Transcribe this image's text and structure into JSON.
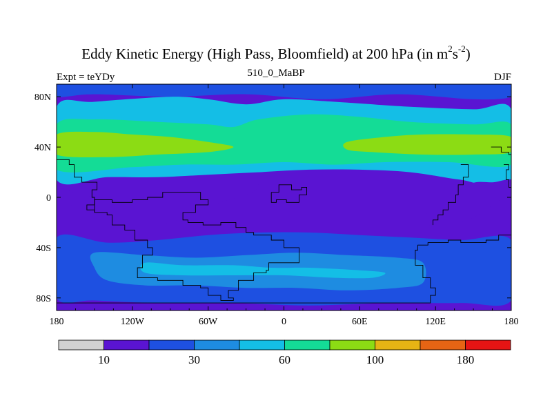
{
  "title": {
    "main": "Eddy Kinetic Energy (High Pass, Bloomfield) at 200 hPa (in m",
    "sup1": "2",
    "mid": "s",
    "sup2": "-2",
    "end": ")"
  },
  "subtitle": "510_0_MaBP",
  "left_label": "Expt = teYDy",
  "right_label": "DJF",
  "colors": {
    "land_outline": "#000000",
    "frame": "#000000"
  },
  "chart_data": {
    "type": "heatmap",
    "title": "Eddy Kinetic Energy (High Pass, Bloomfield) at 200 hPa (in m^2s^-2)",
    "x_axis": {
      "range": [
        -180,
        180
      ],
      "ticks": [
        -180,
        -120,
        -60,
        0,
        60,
        120,
        180
      ],
      "tick_labels": [
        "180",
        "120W",
        "60W",
        "0",
        "60E",
        "120E",
        "180"
      ]
    },
    "y_axis": {
      "range": [
        -90,
        90
      ],
      "ticks": [
        80,
        40,
        0,
        -40,
        -80
      ],
      "tick_labels": [
        "80N",
        "40N",
        "0",
        "40S",
        "80S"
      ]
    },
    "colorbar": {
      "colors": [
        "#d2d2d2",
        "#5a14d2",
        "#1e50e1",
        "#1e8ce1",
        "#14bee6",
        "#14dc96",
        "#8cdc14",
        "#e6b414",
        "#e66414",
        "#e61414"
      ],
      "labels": [
        "10",
        "30",
        "60",
        "100",
        "180"
      ],
      "label_after_box": [
        0,
        2,
        4,
        6,
        8
      ]
    },
    "regions": [
      {
        "name": "arctic-low",
        "level": 2,
        "points": [
          [
            -180,
            90
          ],
          [
            180,
            90
          ],
          [
            180,
            80
          ],
          [
            150,
            78
          ],
          [
            90,
            82
          ],
          [
            30,
            78
          ],
          [
            -30,
            82
          ],
          [
            -90,
            80
          ],
          [
            -150,
            82
          ],
          [
            -180,
            80
          ]
        ]
      },
      {
        "name": "northern-storm-track-outer",
        "level": 4,
        "points": [
          [
            -180,
            72
          ],
          [
            -150,
            76
          ],
          [
            -90,
            80
          ],
          [
            -60,
            78
          ],
          [
            -30,
            74
          ],
          [
            0,
            78
          ],
          [
            40,
            76
          ],
          [
            100,
            72
          ],
          [
            150,
            70
          ],
          [
            180,
            70
          ],
          [
            180,
            10
          ],
          [
            140,
            14
          ],
          [
            100,
            20
          ],
          [
            60,
            22
          ],
          [
            20,
            22
          ],
          [
            -20,
            20
          ],
          [
            -60,
            18
          ],
          [
            -100,
            16
          ],
          [
            -140,
            16
          ],
          [
            -180,
            14
          ]
        ]
      },
      {
        "name": "northern-storm-track-mid",
        "level": 5,
        "points": [
          [
            -180,
            58
          ],
          [
            -150,
            62
          ],
          [
            -100,
            60
          ],
          [
            -60,
            58
          ],
          [
            -40,
            56
          ],
          [
            -20,
            62
          ],
          [
            20,
            66
          ],
          [
            60,
            64
          ],
          [
            100,
            60
          ],
          [
            150,
            58
          ],
          [
            180,
            58
          ],
          [
            180,
            26
          ],
          [
            130,
            28
          ],
          [
            80,
            28
          ],
          [
            40,
            26
          ],
          [
            0,
            28
          ],
          [
            -40,
            26
          ],
          [
            -80,
            26
          ],
          [
            -120,
            24
          ],
          [
            -180,
            22
          ]
        ]
      },
      {
        "name": "northern-storm-track-high",
        "level": 6,
        "points": [
          [
            -180,
            50
          ],
          [
            -150,
            52
          ],
          [
            -120,
            50
          ],
          [
            -90,
            48
          ],
          [
            -60,
            44
          ],
          [
            -40,
            40
          ],
          [
            -60,
            36
          ],
          [
            -100,
            34
          ],
          [
            -140,
            32
          ],
          [
            -180,
            34
          ]
        ]
      },
      {
        "name": "pacific-jet-high",
        "level": 6,
        "points": [
          [
            50,
            44
          ],
          [
            80,
            48
          ],
          [
            110,
            50
          ],
          [
            150,
            50
          ],
          [
            180,
            48
          ],
          [
            180,
            36
          ],
          [
            150,
            34
          ],
          [
            110,
            34
          ],
          [
            70,
            36
          ],
          [
            50,
            38
          ]
        ]
      },
      {
        "name": "tropical-low-west",
        "level": 1,
        "points": [
          [
            -180,
            -2
          ],
          [
            -170,
            -6
          ],
          [
            -150,
            -10
          ],
          [
            -130,
            -18
          ],
          [
            -110,
            -22
          ],
          [
            -90,
            -20
          ],
          [
            -70,
            -12
          ],
          [
            -50,
            -4
          ],
          [
            -30,
            2
          ],
          [
            -20,
            8
          ],
          [
            -24,
            12
          ],
          [
            -40,
            10
          ],
          [
            -70,
            6
          ],
          [
            -100,
            2
          ],
          [
            -130,
            -2
          ],
          [
            -160,
            2
          ],
          [
            -180,
            8
          ]
        ]
      },
      {
        "name": "tropical-low-east",
        "level": 1,
        "points": [
          [
            112,
            -14
          ],
          [
            118,
            -24
          ],
          [
            132,
            -22
          ],
          [
            150,
            -16
          ],
          [
            168,
            -4
          ],
          [
            180,
            4
          ],
          [
            180,
            14
          ],
          [
            166,
            12
          ],
          [
            152,
            12
          ],
          [
            142,
            8
          ],
          [
            136,
            0
          ],
          [
            128,
            -8
          ]
        ]
      },
      {
        "name": "southern-belt-low",
        "level": 2,
        "points": [
          [
            -180,
            -32
          ],
          [
            -140,
            -36
          ],
          [
            -100,
            -34
          ],
          [
            -60,
            -30
          ],
          [
            -20,
            -28
          ],
          [
            20,
            -28
          ],
          [
            60,
            -30
          ],
          [
            100,
            -32
          ],
          [
            140,
            -34
          ],
          [
            180,
            -34
          ],
          [
            180,
            -82
          ],
          [
            140,
            -84
          ],
          [
            80,
            -84
          ],
          [
            20,
            -86
          ],
          [
            -40,
            -84
          ],
          [
            -100,
            -84
          ],
          [
            -150,
            -82
          ],
          [
            -180,
            -80
          ]
        ]
      },
      {
        "name": "southern-belt-mid",
        "level": 3,
        "points": [
          [
            -150,
            -44
          ],
          [
            -110,
            -46
          ],
          [
            -70,
            -48
          ],
          [
            -30,
            -46
          ],
          [
            10,
            -44
          ],
          [
            50,
            -46
          ],
          [
            90,
            -48
          ],
          [
            110,
            -52
          ],
          [
            110,
            -68
          ],
          [
            90,
            -72
          ],
          [
            50,
            -74
          ],
          [
            10,
            -72
          ],
          [
            -30,
            -72
          ],
          [
            -70,
            -70
          ],
          [
            -110,
            -70
          ],
          [
            -140,
            -66
          ],
          [
            -150,
            -56
          ]
        ]
      },
      {
        "name": "southern-belt-high",
        "level": 4,
        "points": [
          [
            -110,
            -52
          ],
          [
            -80,
            -54
          ],
          [
            -40,
            -54
          ],
          [
            -10,
            -56
          ],
          [
            20,
            -56
          ],
          [
            60,
            -58
          ],
          [
            80,
            -60
          ],
          [
            70,
            -64
          ],
          [
            40,
            -64
          ],
          [
            0,
            -62
          ],
          [
            -40,
            -62
          ],
          [
            -80,
            -62
          ],
          [
            -110,
            -60
          ]
        ]
      }
    ],
    "land_outlines": [
      {
        "name": "south-america-like",
        "points": [
          [
            -150,
            -12
          ],
          [
            -140,
            -14
          ],
          [
            -136,
            -22
          ],
          [
            -126,
            -26
          ],
          [
            -118,
            -34
          ],
          [
            -108,
            -40
          ],
          [
            -104,
            -46
          ],
          [
            -112,
            -56
          ],
          [
            -116,
            -64
          ],
          [
            -100,
            -66
          ],
          [
            -80,
            -70
          ],
          [
            -66,
            -72
          ],
          [
            -60,
            -78
          ],
          [
            -50,
            -82
          ],
          [
            -40,
            -80
          ],
          [
            -44,
            -74
          ],
          [
            -36,
            -66
          ],
          [
            -24,
            -60
          ],
          [
            -14,
            -58
          ],
          [
            -12,
            -52
          ],
          [
            4,
            -52
          ],
          [
            12,
            -46
          ],
          [
            12,
            -40
          ],
          [
            0,
            -34
          ],
          [
            -10,
            -30
          ],
          [
            -24,
            -28
          ],
          [
            -30,
            -24
          ],
          [
            -38,
            -20
          ],
          [
            -50,
            -22
          ],
          [
            -64,
            -20
          ],
          [
            -76,
            -18
          ],
          [
            -80,
            -12
          ],
          [
            -70,
            -6
          ],
          [
            -60,
            -2
          ],
          [
            -66,
            4
          ],
          [
            -80,
            4
          ],
          [
            -96,
            0
          ],
          [
            -108,
            -2
          ],
          [
            -120,
            -4
          ],
          [
            -136,
            -2
          ],
          [
            -150,
            -12
          ]
        ]
      },
      {
        "name": "west-fragment",
        "points": [
          [
            -180,
            30
          ],
          [
            -170,
            26
          ],
          [
            -166,
            16
          ],
          [
            -160,
            12
          ],
          [
            -152,
            12
          ],
          [
            -148,
            6
          ],
          [
            -152,
            0
          ],
          [
            -150,
            -6
          ],
          [
            -156,
            -10
          ],
          [
            -150,
            -12
          ]
        ]
      },
      {
        "name": "central-islands",
        "points": [
          [
            -10,
            4
          ],
          [
            -4,
            10
          ],
          [
            6,
            6
          ],
          [
            14,
            8
          ],
          [
            18,
            2
          ],
          [
            12,
            -4
          ],
          [
            2,
            -2
          ],
          [
            -6,
            -4
          ],
          [
            -10,
            4
          ]
        ]
      },
      {
        "name": "east-continent",
        "points": [
          [
            180,
            -30
          ],
          [
            170,
            -34
          ],
          [
            160,
            -36
          ],
          [
            140,
            -34
          ],
          [
            130,
            -36
          ],
          [
            114,
            -38
          ],
          [
            106,
            -42
          ],
          [
            104,
            -54
          ],
          [
            110,
            -64
          ],
          [
            116,
            -72
          ],
          [
            120,
            -78
          ],
          [
            116,
            -84
          ],
          [
            -180,
            -84
          ]
        ]
      },
      {
        "name": "east-upper",
        "points": [
          [
            140,
            26
          ],
          [
            146,
            26
          ],
          [
            146,
            16
          ],
          [
            142,
            10
          ],
          [
            138,
            2
          ],
          [
            136,
            -4
          ],
          [
            130,
            -10
          ],
          [
            126,
            -14
          ],
          [
            122,
            -18
          ],
          [
            118,
            -22
          ]
        ]
      },
      {
        "name": "far-east-box",
        "points": [
          [
            164,
            40
          ],
          [
            172,
            40
          ],
          [
            172,
            36
          ],
          [
            178,
            34
          ],
          [
            180,
            34
          ]
        ]
      },
      {
        "name": "far-east-lower",
        "points": [
          [
            174,
            26
          ],
          [
            178,
            22
          ],
          [
            176,
            14
          ],
          [
            178,
            8
          ],
          [
            180,
            6
          ]
        ]
      }
    ]
  }
}
